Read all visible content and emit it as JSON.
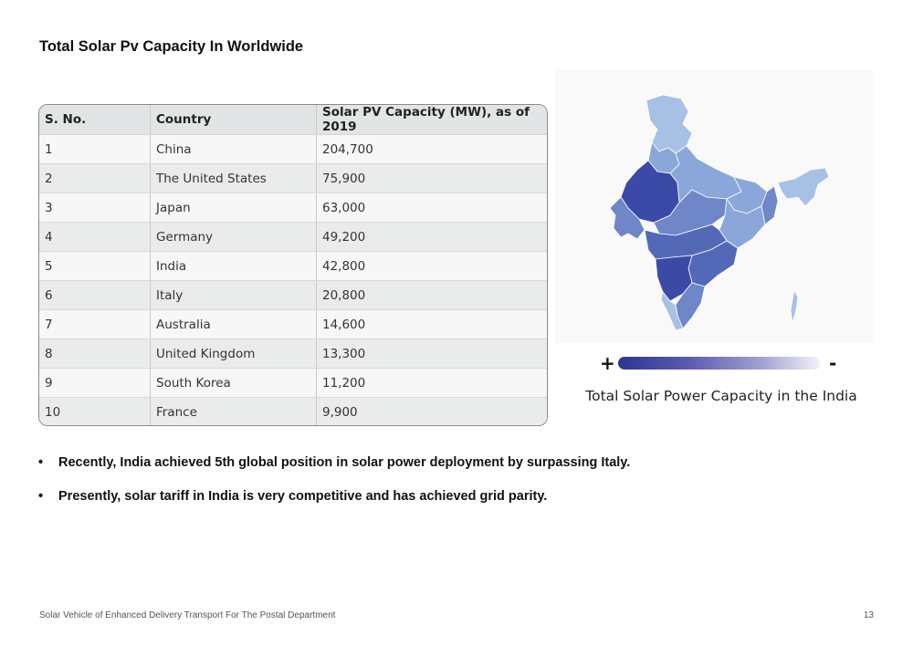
{
  "page": {
    "title": "Total Solar Pv Capacity In Worldwide"
  },
  "table": {
    "headers": [
      "S. No.",
      "Country",
      "Solar PV Capacity (MW), as of 2019"
    ],
    "rows": [
      [
        "1",
        "China",
        "204,700"
      ],
      [
        "2",
        "The United States",
        "75,900"
      ],
      [
        "3",
        "Japan",
        "63,000"
      ],
      [
        "4",
        "Germany",
        "49,200"
      ],
      [
        "5",
        "India",
        "42,800"
      ],
      [
        "6",
        "Italy",
        "20,800"
      ],
      [
        "7",
        "Australia",
        "14,600"
      ],
      [
        "8",
        "United Kingdom",
        "13,300"
      ],
      [
        "9",
        "South Korea",
        "11,200"
      ],
      [
        "10",
        "France",
        "9,900"
      ]
    ]
  },
  "map": {
    "legend_high": "+",
    "legend_low": "-",
    "caption": "Total Solar Power Capacity in the India",
    "colors": {
      "darkest": "#3a4aa6",
      "dark": "#5468b8",
      "medium": "#6f86c8",
      "light": "#8ba6d9",
      "lightest": "#a7c0e6"
    }
  },
  "bullets": [
    "Recently, India achieved 5th global position in solar power deployment by surpassing Italy.",
    "Presently, solar tariff in India is very competitive and has achieved grid parity."
  ],
  "footer": {
    "text": "Solar Vehicle of Enhanced Delivery Transport For The Postal Department",
    "page_number": "13"
  }
}
